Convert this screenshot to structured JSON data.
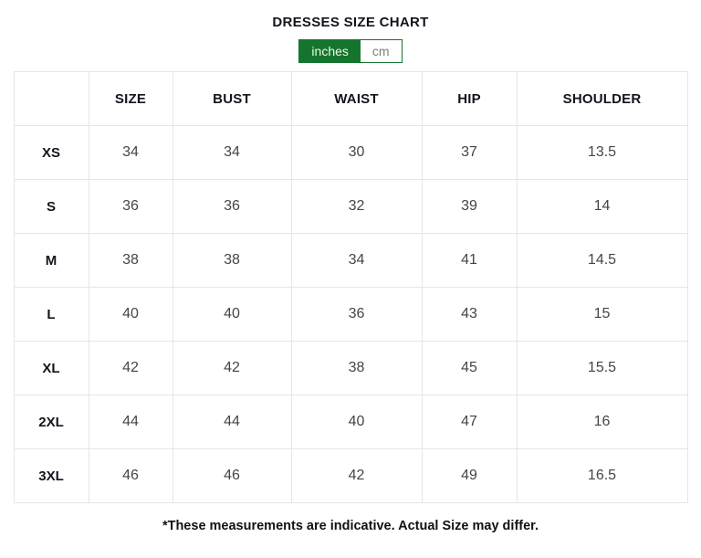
{
  "page": {
    "title": "DRESSES SIZE CHART",
    "footnote": "*These measurements are indicative. Actual Size may differ."
  },
  "unit_toggle": {
    "selected_unit": "inches",
    "options": [
      {
        "label": "inches",
        "selected": true
      },
      {
        "label": "cm",
        "selected": false
      }
    ]
  },
  "size_chart": {
    "columns": [
      "",
      "SIZE",
      "BUST",
      "WAIST",
      "HIP",
      "SHOULDER"
    ],
    "rows": [
      {
        "label": "XS",
        "values": [
          "34",
          "34",
          "30",
          "37",
          "13.5"
        ]
      },
      {
        "label": "S",
        "values": [
          "36",
          "36",
          "32",
          "39",
          "14"
        ]
      },
      {
        "label": "M",
        "values": [
          "38",
          "38",
          "34",
          "41",
          "14.5"
        ]
      },
      {
        "label": "L",
        "values": [
          "40",
          "40",
          "36",
          "43",
          "15"
        ]
      },
      {
        "label": "XL",
        "values": [
          "42",
          "42",
          "38",
          "45",
          "15.5"
        ]
      },
      {
        "label": "2XL",
        "values": [
          "44",
          "44",
          "40",
          "47",
          "16"
        ]
      },
      {
        "label": "3XL",
        "values": [
          "46",
          "46",
          "42",
          "49",
          "16.5"
        ]
      }
    ]
  },
  "colors": {
    "accent_green": "#15752f",
    "selected_text": "#eef7e3",
    "unselected_text": "#7d7d7d",
    "table_border": "#e6e6e6",
    "value_text": "#454545",
    "heading_text": "#14141e"
  }
}
